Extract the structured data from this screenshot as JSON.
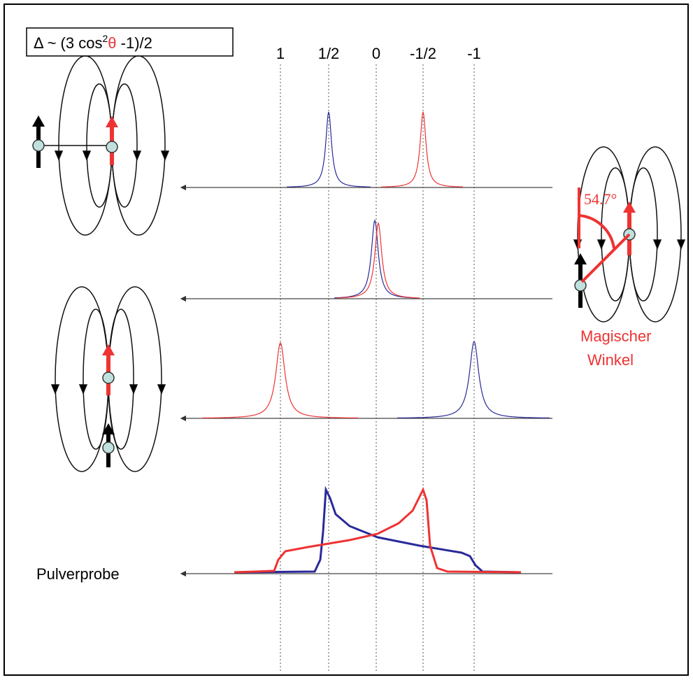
{
  "formula": {
    "prefix": "Δ ~ (3 cos",
    "sup": "2",
    "theta": "θ",
    "suffix": " -1)/2"
  },
  "axis_labels": [
    "1",
    "1/2",
    "0",
    "-1/2",
    "-1"
  ],
  "angle_label": "54.7°",
  "magic_angle": [
    "Magischer",
    "Winkel"
  ],
  "powder_label": "Pulverprobe"
}
